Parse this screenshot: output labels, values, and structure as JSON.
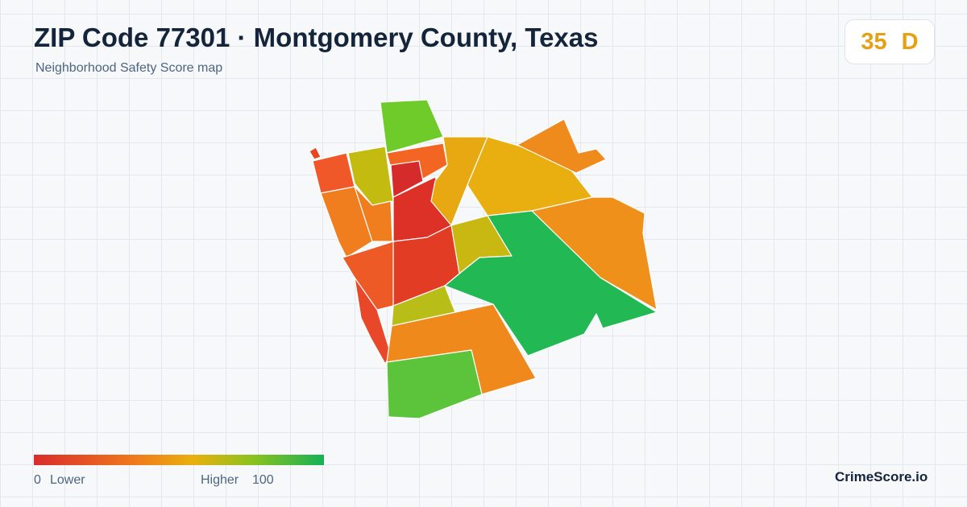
{
  "header": {
    "title": "ZIP Code 77301 · Montgomery County, Texas",
    "subtitle": "Neighborhood Safety Score map"
  },
  "score": {
    "value": 35,
    "grade": "D"
  },
  "legend": {
    "min": 0,
    "min_label": "Lower",
    "max_label": "Higher",
    "max": 100
  },
  "brand": "CrimeScore.io"
}
